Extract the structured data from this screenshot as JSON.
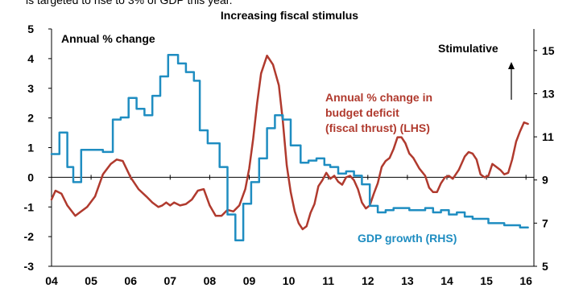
{
  "header_clip_text": "is targeted to rise to 3% of GDP this year.",
  "chart_data": {
    "type": "line",
    "title": "Increasing fiscal stimulus",
    "xlabel": "",
    "ylabel_left": "",
    "ylabel_right": "",
    "x_ticks": [
      "04",
      "05",
      "06",
      "07",
      "08",
      "09",
      "10",
      "11",
      "12",
      "13",
      "14",
      "15",
      "16"
    ],
    "y_left": {
      "ticks": [
        -3,
        -2,
        -1,
        0,
        1,
        2,
        3,
        4,
        5
      ],
      "ylim": [
        -3,
        5
      ]
    },
    "y_right": {
      "ticks": [
        5,
        7,
        9,
        11,
        13,
        15
      ],
      "ylim": [
        5,
        16
      ]
    },
    "grid": false,
    "annotations": {
      "left_axis_label": "Annual % change",
      "stimulative": "Stimulative",
      "budget_label_lines": [
        "Annual % change in",
        "budget deficit",
        "(fiscal thrust) (LHS)"
      ],
      "gdp_label": "GDP growth (RHS)"
    },
    "colors": {
      "budget": "#b03a2e",
      "gdp": "#1f8dc1",
      "axis": "#000000"
    },
    "series": [
      {
        "name": "Annual % change in budget deficit (fiscal thrust) (LHS)",
        "axis": "left",
        "step": false,
        "points": [
          [
            2004.0,
            -0.75
          ],
          [
            2004.1,
            -0.45
          ],
          [
            2004.25,
            -0.55
          ],
          [
            2004.4,
            -0.95
          ],
          [
            2004.6,
            -1.3
          ],
          [
            2004.75,
            -1.15
          ],
          [
            2004.9,
            -1.0
          ],
          [
            2005.1,
            -0.65
          ],
          [
            2005.3,
            0.1
          ],
          [
            2005.5,
            0.45
          ],
          [
            2005.65,
            0.6
          ],
          [
            2005.8,
            0.55
          ],
          [
            2006.0,
            0.0
          ],
          [
            2006.2,
            -0.4
          ],
          [
            2006.4,
            -0.65
          ],
          [
            2006.55,
            -0.85
          ],
          [
            2006.7,
            -1.0
          ],
          [
            2006.8,
            -0.95
          ],
          [
            2006.9,
            -0.85
          ],
          [
            2007.0,
            -0.95
          ],
          [
            2007.1,
            -0.85
          ],
          [
            2007.25,
            -0.95
          ],
          [
            2007.4,
            -0.9
          ],
          [
            2007.55,
            -0.75
          ],
          [
            2007.7,
            -0.45
          ],
          [
            2007.85,
            -0.4
          ],
          [
            2008.0,
            -0.95
          ],
          [
            2008.15,
            -1.3
          ],
          [
            2008.3,
            -1.3
          ],
          [
            2008.45,
            -1.1
          ],
          [
            2008.6,
            -1.15
          ],
          [
            2008.75,
            -0.95
          ],
          [
            2008.9,
            -0.4
          ],
          [
            2009.0,
            0.3
          ],
          [
            2009.1,
            1.3
          ],
          [
            2009.2,
            2.5
          ],
          [
            2009.3,
            3.5
          ],
          [
            2009.45,
            4.1
          ],
          [
            2009.6,
            3.8
          ],
          [
            2009.75,
            3.1
          ],
          [
            2009.85,
            1.9
          ],
          [
            2009.95,
            0.4
          ],
          [
            2010.05,
            -0.5
          ],
          [
            2010.15,
            -1.15
          ],
          [
            2010.25,
            -1.55
          ],
          [
            2010.35,
            -1.75
          ],
          [
            2010.45,
            -1.65
          ],
          [
            2010.55,
            -1.2
          ],
          [
            2010.65,
            -0.9
          ],
          [
            2010.75,
            -0.3
          ],
          [
            2010.85,
            -0.1
          ],
          [
            2010.95,
            0.15
          ],
          [
            2011.05,
            -0.05
          ],
          [
            2011.15,
            0.05
          ],
          [
            2011.25,
            -0.15
          ],
          [
            2011.35,
            -0.25
          ],
          [
            2011.45,
            0.0
          ],
          [
            2011.55,
            0.05
          ],
          [
            2011.65,
            -0.1
          ],
          [
            2011.75,
            -0.4
          ],
          [
            2011.85,
            -0.85
          ],
          [
            2011.95,
            -1.05
          ],
          [
            2012.05,
            -0.95
          ],
          [
            2012.15,
            -0.55
          ],
          [
            2012.25,
            -0.2
          ],
          [
            2012.35,
            0.35
          ],
          [
            2012.45,
            0.55
          ],
          [
            2012.55,
            0.65
          ],
          [
            2012.65,
            0.95
          ],
          [
            2012.75,
            1.35
          ],
          [
            2012.85,
            1.35
          ],
          [
            2012.95,
            1.15
          ],
          [
            2013.05,
            0.8
          ],
          [
            2013.15,
            0.65
          ],
          [
            2013.3,
            0.3
          ],
          [
            2013.45,
            0.05
          ],
          [
            2013.55,
            -0.35
          ],
          [
            2013.65,
            -0.5
          ],
          [
            2013.75,
            -0.5
          ],
          [
            2013.85,
            -0.2
          ],
          [
            2013.95,
            0.0
          ],
          [
            2014.05,
            0.05
          ],
          [
            2014.15,
            -0.05
          ],
          [
            2014.3,
            0.25
          ],
          [
            2014.45,
            0.7
          ],
          [
            2014.55,
            0.85
          ],
          [
            2014.65,
            0.8
          ],
          [
            2014.75,
            0.6
          ],
          [
            2014.85,
            0.1
          ],
          [
            2014.95,
            0.0
          ],
          [
            2015.05,
            0.05
          ],
          [
            2015.15,
            0.45
          ],
          [
            2015.25,
            0.35
          ],
          [
            2015.35,
            0.25
          ],
          [
            2015.45,
            0.1
          ],
          [
            2015.55,
            0.15
          ],
          [
            2015.65,
            0.6
          ],
          [
            2015.75,
            1.2
          ],
          [
            2015.85,
            1.55
          ],
          [
            2015.95,
            1.85
          ],
          [
            2016.05,
            1.8
          ]
        ]
      },
      {
        "name": "GDP growth (RHS)",
        "axis": "right",
        "step": true,
        "points": [
          [
            2004.0,
            10.2
          ],
          [
            2004.2,
            11.2
          ],
          [
            2004.4,
            9.6
          ],
          [
            2004.55,
            8.9
          ],
          [
            2004.75,
            10.4
          ],
          [
            2005.3,
            10.3
          ],
          [
            2005.55,
            11.8
          ],
          [
            2005.75,
            11.9
          ],
          [
            2005.95,
            12.8
          ],
          [
            2006.15,
            12.3
          ],
          [
            2006.35,
            12.0
          ],
          [
            2006.55,
            12.9
          ],
          [
            2006.75,
            13.8
          ],
          [
            2006.95,
            14.8
          ],
          [
            2007.2,
            14.4
          ],
          [
            2007.4,
            14.0
          ],
          [
            2007.6,
            13.6
          ],
          [
            2007.75,
            11.3
          ],
          [
            2007.95,
            10.7
          ],
          [
            2008.25,
            9.6
          ],
          [
            2008.45,
            7.4
          ],
          [
            2008.65,
            6.2
          ],
          [
            2008.85,
            7.9
          ],
          [
            2009.05,
            8.9
          ],
          [
            2009.25,
            10.0
          ],
          [
            2009.45,
            11.4
          ],
          [
            2009.65,
            12.0
          ],
          [
            2009.85,
            11.8
          ],
          [
            2010.05,
            10.6
          ],
          [
            2010.3,
            9.8
          ],
          [
            2010.5,
            9.9
          ],
          [
            2010.7,
            10.0
          ],
          [
            2010.9,
            9.7
          ],
          [
            2011.05,
            9.6
          ],
          [
            2011.25,
            9.3
          ],
          [
            2011.45,
            9.4
          ],
          [
            2011.65,
            9.2
          ],
          [
            2011.85,
            8.8
          ],
          [
            2012.05,
            7.8
          ],
          [
            2012.25,
            7.5
          ],
          [
            2012.45,
            7.6
          ],
          [
            2012.65,
            7.7
          ],
          [
            2012.85,
            7.7
          ],
          [
            2013.05,
            7.6
          ],
          [
            2013.25,
            7.6
          ],
          [
            2013.45,
            7.7
          ],
          [
            2013.65,
            7.5
          ],
          [
            2013.85,
            7.6
          ],
          [
            2014.05,
            7.4
          ],
          [
            2014.25,
            7.5
          ],
          [
            2014.45,
            7.3
          ],
          [
            2014.65,
            7.2
          ],
          [
            2014.85,
            7.2
          ],
          [
            2015.05,
            7.0
          ],
          [
            2015.25,
            7.0
          ],
          [
            2015.45,
            6.9
          ],
          [
            2015.65,
            6.9
          ],
          [
            2015.85,
            6.8
          ],
          [
            2015.95,
            6.8
          ],
          [
            2016.05,
            6.8
          ]
        ]
      }
    ]
  }
}
